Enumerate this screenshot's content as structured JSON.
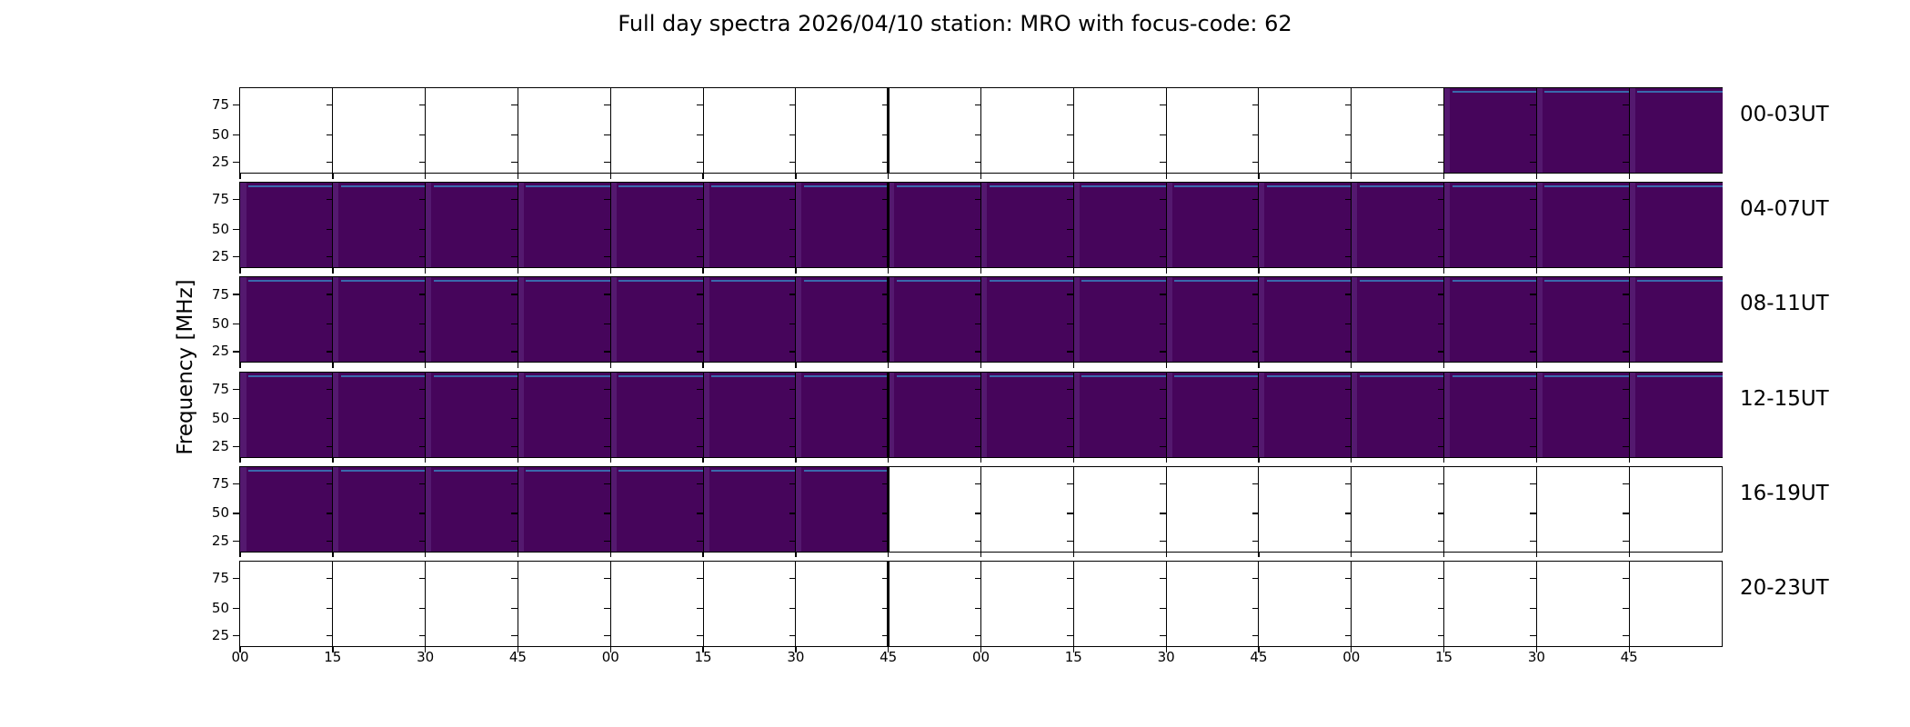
{
  "chart_data": {
    "type": "heatmap",
    "title": "Full day spectra 2026/04/10 station: MRO with focus-code: 62",
    "ylabel": "Frequency [MHz]",
    "y_ticks": [
      25,
      50,
      75
    ],
    "y_tick_labels": [
      "75",
      "50",
      "25"
    ],
    "x_tick_labels": [
      "00",
      "15",
      "30",
      "45",
      "00",
      "15",
      "30",
      "45",
      "00",
      "15",
      "30",
      "45",
      "00",
      "15",
      "30",
      "45"
    ],
    "x_units": "minutes within each 4-hour block",
    "segments_per_row": 16,
    "segment_minutes": 15,
    "rows": [
      {
        "label": "00-03UT",
        "coverage": [
          0,
          0,
          0,
          0,
          0,
          0,
          0,
          0,
          0,
          0,
          0,
          0,
          0,
          1,
          1,
          1
        ]
      },
      {
        "label": "04-07UT",
        "coverage": [
          1,
          1,
          1,
          1,
          1,
          1,
          1,
          1,
          1,
          1,
          1,
          1,
          1,
          1,
          1,
          1
        ]
      },
      {
        "label": "08-11UT",
        "coverage": [
          1,
          1,
          1,
          1,
          1,
          1,
          1,
          1,
          1,
          1,
          1,
          1,
          1,
          1,
          1,
          1
        ]
      },
      {
        "label": "12-15UT",
        "coverage": [
          1,
          1,
          1,
          1,
          1,
          1,
          1,
          1,
          1,
          1,
          1,
          1,
          1,
          1,
          1,
          1
        ]
      },
      {
        "label": "16-19UT",
        "coverage": [
          1,
          1,
          1,
          1,
          1,
          1,
          1,
          0,
          0,
          0,
          0,
          0,
          0,
          0,
          0,
          0
        ]
      },
      {
        "label": "20-23UT",
        "coverage": [
          0,
          0,
          0,
          0,
          0,
          0,
          0,
          0,
          0,
          0,
          0,
          0,
          0,
          0,
          0,
          0
        ]
      }
    ],
    "coverage_legend": {
      "1": "spectra data present (dark purple fill)",
      "0": "no data (white)"
    },
    "colors": {
      "data_fill": "#46055B",
      "data_fill_left_edge": "#54196F",
      "data_top_band": "#3A69AC",
      "axes": "#000000",
      "background": "#FFFFFF"
    },
    "grid": "vertical 15-minute subplot boundaries, thick boundary after 7th segment",
    "legend_position": "none"
  }
}
